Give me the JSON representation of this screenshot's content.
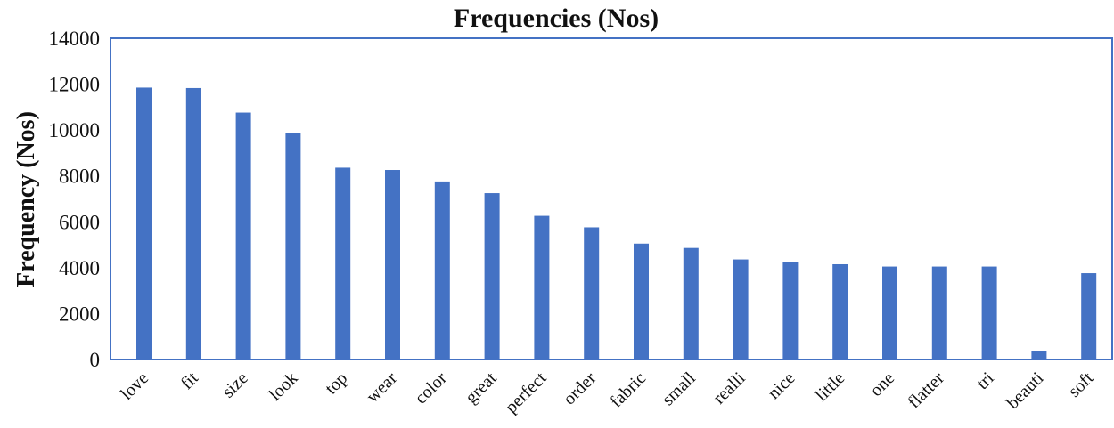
{
  "chart_data": {
    "type": "bar",
    "title": "Frequencies (Nos)",
    "xlabel": "",
    "ylabel": "Frequency (Nos)",
    "categories": [
      "love",
      "fit",
      "size",
      "look",
      "top",
      "wear",
      "color",
      "great",
      "perfect",
      "order",
      "fabric",
      "small",
      "realli",
      "nice",
      "little",
      "one",
      "flatter",
      "tri",
      "beauti",
      "soft"
    ],
    "values": [
      11850,
      11830,
      10760,
      9860,
      8360,
      8260,
      7760,
      7250,
      6260,
      5760,
      5050,
      4860,
      4360,
      4260,
      4150,
      4050,
      4050,
      4050,
      350,
      3760
    ],
    "ylim": [
      0,
      14000
    ],
    "yticks": [
      "0",
      "2000",
      "4000",
      "6000",
      "8000",
      "10000",
      "12000",
      "14000"
    ],
    "grid": false,
    "legend": "none",
    "bar_color": "#4472C4",
    "frame_color": "#4472C4"
  }
}
